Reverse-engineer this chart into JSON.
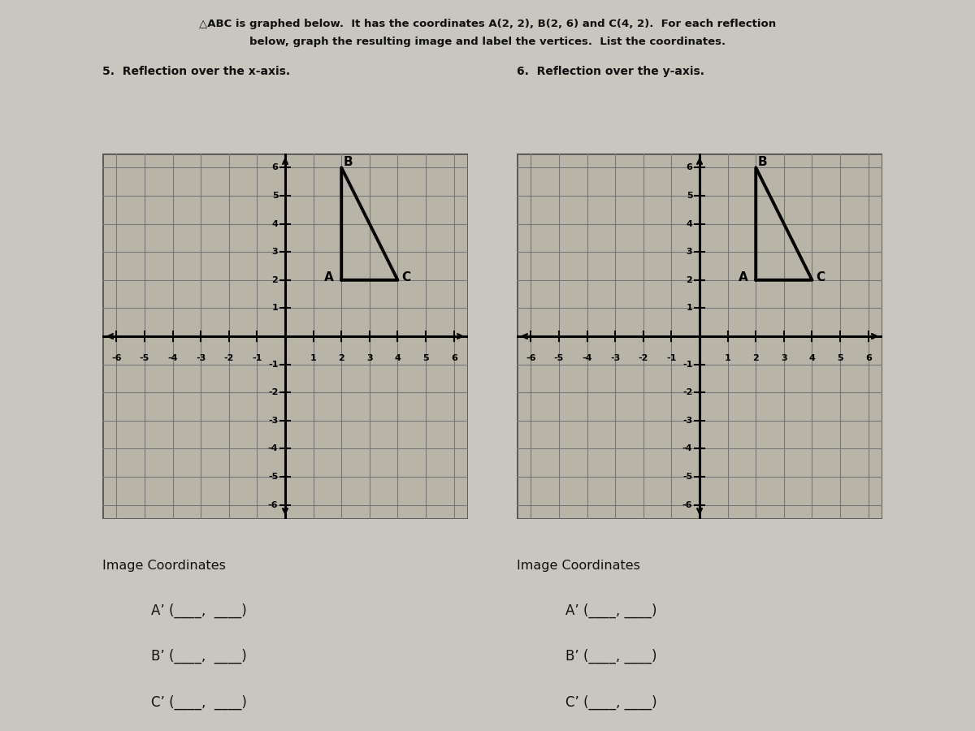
{
  "page_bg": "#c8c6be",
  "grid_bg": "#b8b5a8",
  "title_line1": "△ABC is graphed below.  It has the coordinates A(2, 2), B(2, 6) and C(4, 2).  For each reflection",
  "title_line2": "below, graph the resulting image and label the vertices.  List the coordinates.",
  "label5": "5.  Reflection over the x-axis.",
  "label6": "6.  Reflection over the y-axis.",
  "triangle_A": [
    2,
    2
  ],
  "triangle_B": [
    2,
    6
  ],
  "triangle_C": [
    4,
    2
  ],
  "grid_min": -6,
  "grid_max": 6,
  "axis_color": "#000000",
  "triangle_color": "#000000",
  "grid_line_color": "#777777",
  "grid_border_color": "#555555",
  "image_coords_text": "Image Coordinates",
  "left_blanks": [
    "A’ (____,  ____)",
    "B’ (____,  ____)",
    "C’ (____,  ____)"
  ],
  "right_blanks": [
    "A’ (____, ____)",
    "B’ (____, ____)",
    "C’ (____, ____)"
  ]
}
